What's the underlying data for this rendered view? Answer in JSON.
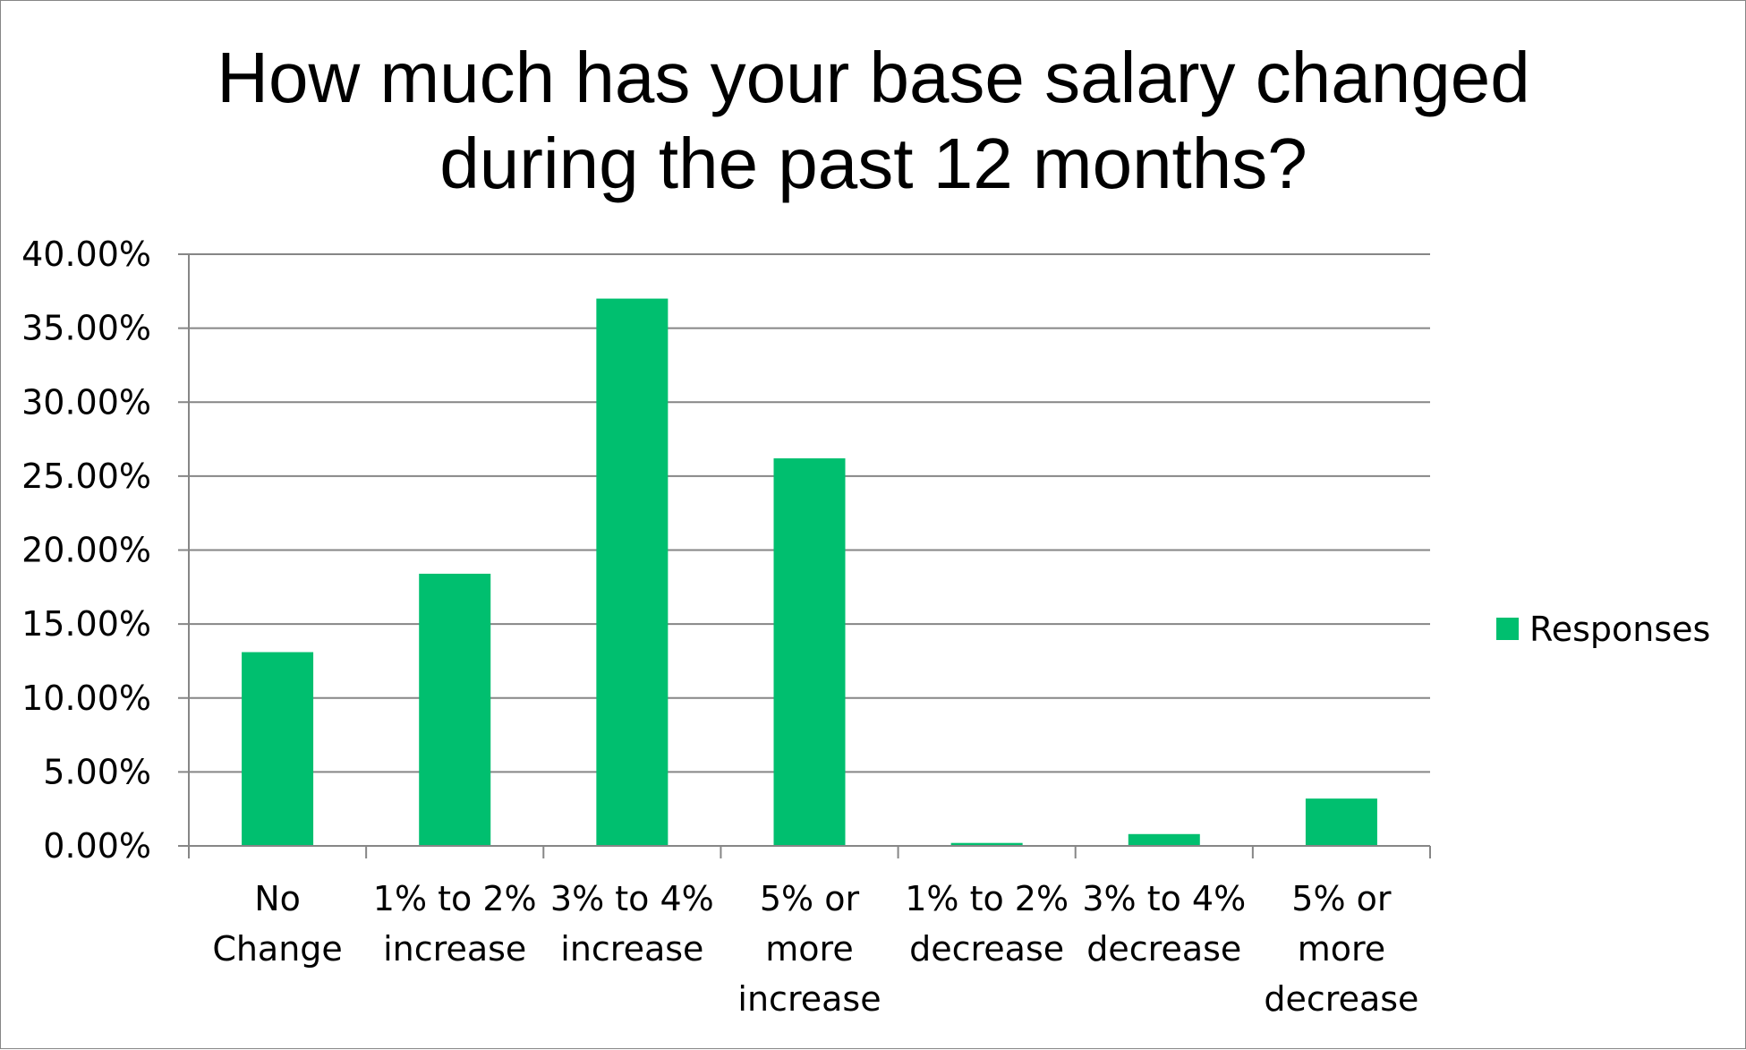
{
  "chart_data": {
    "type": "bar",
    "title_lines": [
      "How much has your base salary changed",
      "during the past 12 months?"
    ],
    "categories": [
      [
        "No",
        "Change"
      ],
      [
        "1% to 2%",
        "increase"
      ],
      [
        "3% to 4%",
        "increase"
      ],
      [
        "5% or",
        "more",
        "increase"
      ],
      [
        "1% to 2%",
        "decrease"
      ],
      [
        "3% to 4%",
        "decrease"
      ],
      [
        "5% or",
        "more",
        "decrease"
      ]
    ],
    "series": [
      {
        "name": "Responses",
        "values": [
          13.1,
          18.4,
          37.0,
          26.2,
          0.2,
          0.8,
          3.2
        ],
        "color": "#00bf6f"
      }
    ],
    "ylim": [
      0,
      40
    ],
    "yticks": [
      "0.00%",
      "5.00%",
      "10.00%",
      "15.00%",
      "20.00%",
      "25.00%",
      "30.00%",
      "35.00%",
      "40.00%"
    ],
    "gridlines": true,
    "legend_position": "right",
    "gridline_color": "#868686"
  }
}
